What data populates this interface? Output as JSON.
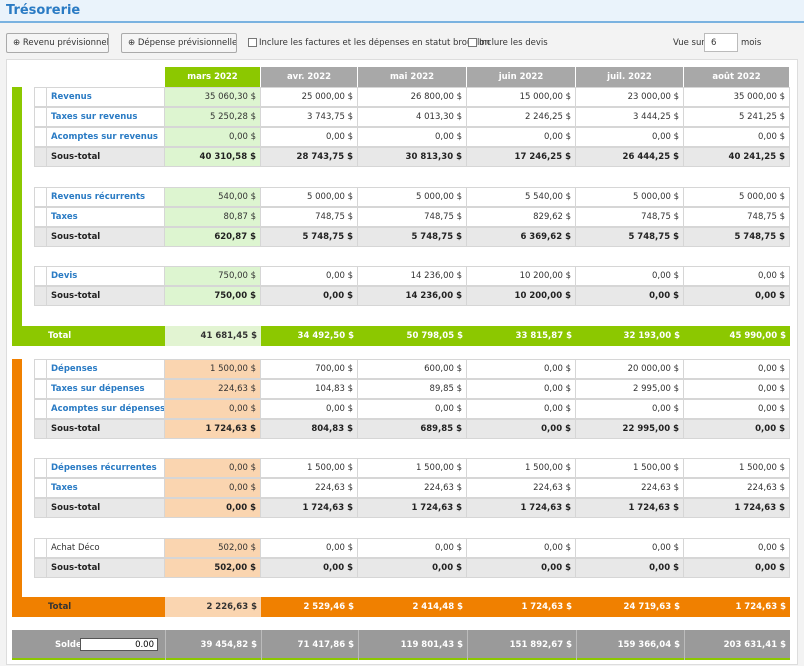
{
  "header": {
    "title": "Trésorerie"
  },
  "toolbar": {
    "buttons": [
      "Revenu prévisionnel",
      "Dépense prévisionnelle"
    ],
    "checkboxes": [
      "Inclure les factures et les dépenses en statut brouillon",
      "Inclure les devis"
    ],
    "view_prefix": "Vue sur",
    "view_value": "6",
    "view_suffix": "mois"
  },
  "table": {
    "months": [
      "mars 2022",
      "avr. 2022",
      "mai 2022",
      "juin 2022",
      "juil. 2022",
      "août 2022"
    ],
    "income": {
      "groups": [
        [
          {
            "label": "Revenus",
            "values": [
              "35 060,30 $",
              "25 000,00 $",
              "26 800,00 $",
              "15 000,00 $",
              "23 000,00 $",
              "35 000,00 $"
            ]
          },
          {
            "label": "Taxes sur revenus",
            "values": [
              "5 250,28 $",
              "3 743,75 $",
              "4 013,30 $",
              "2 246,25 $",
              "3 444,25 $",
              "5 241,25 $"
            ]
          },
          {
            "label": "Acomptes sur revenus",
            "values": [
              "0,00 $",
              "0,00 $",
              "0,00 $",
              "0,00 $",
              "0,00 $",
              "0,00 $"
            ]
          },
          {
            "label": "Sous-total",
            "values": [
              "40 310,58 $",
              "28 743,75 $",
              "30 813,30 $",
              "17 246,25 $",
              "26 444,25 $",
              "40 241,25 $"
            ]
          }
        ],
        [
          {
            "label": "Revenus récurrents",
            "values": [
              "540,00 $",
              "5 000,00 $",
              "5 000,00 $",
              "5 540,00 $",
              "5 000,00 $",
              "5 000,00 $"
            ]
          },
          {
            "label": "Taxes",
            "values": [
              "80,87 $",
              "748,75 $",
              "748,75 $",
              "829,62 $",
              "748,75 $",
              "748,75 $"
            ]
          },
          {
            "label": "Sous-total",
            "values": [
              "620,87 $",
              "5 748,75 $",
              "5 748,75 $",
              "6 369,62 $",
              "5 748,75 $",
              "5 748,75 $"
            ]
          }
        ],
        [
          {
            "label": "Devis",
            "values": [
              "750,00 $",
              "0,00 $",
              "14 236,00 $",
              "10 200,00 $",
              "0,00 $",
              "0,00 $"
            ]
          },
          {
            "label": "Sous-total",
            "values": [
              "750,00 $",
              "0,00 $",
              "14 236,00 $",
              "10 200,00 $",
              "0,00 $",
              "0,00 $"
            ]
          }
        ]
      ],
      "total": {
        "label": "Total",
        "values": [
          "41 681,45 $",
          "34 492,50 $",
          "50 798,05 $",
          "33 815,87 $",
          "32 193,00 $",
          "45 990,00 $"
        ]
      }
    },
    "expenses": {
      "groups": [
        [
          {
            "label": "Dépenses",
            "values": [
              "1 500,00 $",
              "700,00 $",
              "600,00 $",
              "0,00 $",
              "20 000,00 $",
              "0,00 $"
            ]
          },
          {
            "label": "Taxes sur dépenses",
            "values": [
              "224,63 $",
              "104,83 $",
              "89,85 $",
              "0,00 $",
              "2 995,00 $",
              "0,00 $"
            ]
          },
          {
            "label": "Acomptes sur dépenses",
            "values": [
              "0,00 $",
              "0,00 $",
              "0,00 $",
              "0,00 $",
              "0,00 $",
              "0,00 $"
            ]
          },
          {
            "label": "Sous-total",
            "values": [
              "1 724,63 $",
              "804,83 $",
              "689,85 $",
              "0,00 $",
              "22 995,00 $",
              "0,00 $"
            ]
          }
        ],
        [
          {
            "label": "Dépenses récurrentes",
            "values": [
              "0,00 $",
              "1 500,00 $",
              "1 500,00 $",
              "1 500,00 $",
              "1 500,00 $",
              "1 500,00 $"
            ]
          },
          {
            "label": "Taxes",
            "values": [
              "0,00 $",
              "224,63 $",
              "224,63 $",
              "224,63 $",
              "224,63 $",
              "224,63 $"
            ]
          },
          {
            "label": "Sous-total",
            "values": [
              "0,00 $",
              "1 724,63 $",
              "1 724,63 $",
              "1 724,63 $",
              "1 724,63 $",
              "1 724,63 $"
            ]
          }
        ],
        [
          {
            "label": "Achat Déco",
            "values": [
              "502,00 $",
              "0,00 $",
              "0,00 $",
              "0,00 $",
              "0,00 $",
              "0,00 $"
            ]
          },
          {
            "label": "Sous-total",
            "values": [
              "502,00 $",
              "0,00 $",
              "0,00 $",
              "0,00 $",
              "0,00 $",
              "0,00 $"
            ]
          }
        ]
      ],
      "total": {
        "label": "Total",
        "values": [
          "2 226,63 $",
          "2 529,46 $",
          "2 414,48 $",
          "1 724,63 $",
          "24 719,63 $",
          "1 724,63 $"
        ]
      }
    },
    "balance": {
      "label": "Solde",
      "input": "0.00",
      "values": [
        "39 454,82 $",
        "71 417,86 $",
        "119 801,43 $",
        "151 892,67 $",
        "159 366,04 $",
        "203 631,41 $"
      ]
    }
  }
}
